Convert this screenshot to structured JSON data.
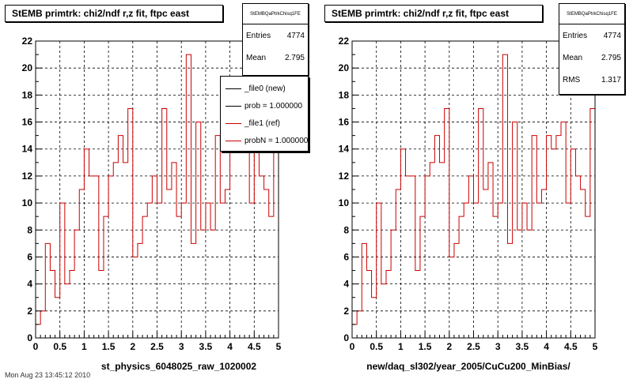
{
  "panels": [
    {
      "title": "StEMB primtrk: chi2/ndf r,z fit, ftpc east",
      "xtitle": "st_physics_6048025_raw_1020002",
      "stats": {
        "name": "StEMBQaPtrkChisq1FE",
        "rows": [
          {
            "label": "Entries",
            "value": "4774"
          },
          {
            "label": "Mean",
            "value": "2.795"
          }
        ]
      },
      "legend": [
        {
          "label": "_file0 (new)",
          "color": "#000000"
        },
        {
          "label": "prob = 1.000000",
          "color": "#000000"
        },
        {
          "label": "_file1 (ref)",
          "color": "#cc0000"
        },
        {
          "label": "probN = 1.000000",
          "color": "#cc0000"
        }
      ]
    },
    {
      "title": "StEMB primtrk: chi2/ndf r,z fit, ftpc east",
      "xtitle": "new/daq_sl302/year_2005/CuCu200_MinBias/",
      "stats": {
        "name": "StEMBQaPtrkChisq1FE",
        "rows": [
          {
            "label": "Entries",
            "value": "4774"
          },
          {
            "label": "Mean",
            "value": "2.795"
          },
          {
            "label": "RMS",
            "value": "1.317"
          }
        ]
      },
      "legend": []
    }
  ],
  "footer": "Mon Aug 23 13:45:12 2010",
  "colors": {
    "histogram": "#cc0000",
    "grid": "#000000"
  },
  "chart_data": [
    {
      "type": "histogram",
      "title": "StEMB primtrk: chi2/ndf r,z fit, ftpc east",
      "xlabel": "st_physics_6048025_raw_1020002",
      "xlim": [
        0,
        5
      ],
      "ylim": [
        0,
        22
      ],
      "xticks": [
        "0",
        "0.5",
        "1",
        "1.5",
        "2",
        "2.5",
        "3",
        "3.5",
        "4",
        "4.5",
        "5"
      ],
      "yticks": [
        "0",
        "2",
        "4",
        "6",
        "8",
        "10",
        "12",
        "14",
        "16",
        "18",
        "20",
        "22"
      ],
      "grid": true,
      "bin_width": 0.1,
      "values": [
        1,
        2,
        7,
        5,
        3,
        10,
        4,
        5,
        8,
        11,
        14,
        12,
        12,
        5,
        9,
        12,
        13,
        15,
        13,
        17,
        6,
        7,
        9,
        10,
        12,
        10,
        17,
        11,
        13,
        9,
        10,
        21,
        7,
        16,
        8,
        10,
        8,
        15,
        10,
        11,
        15,
        14,
        15,
        16,
        10,
        14,
        12,
        11,
        9,
        16
      ],
      "legend_position": "top-right"
    },
    {
      "type": "histogram",
      "title": "StEMB primtrk: chi2/ndf r,z fit, ftpc east",
      "xlabel": "new/daq_sl302/year_2005/CuCu200_MinBias/",
      "xlim": [
        0,
        5
      ],
      "ylim": [
        0,
        22
      ],
      "xticks": [
        "0",
        "0.5",
        "1",
        "1.5",
        "2",
        "2.5",
        "3",
        "3.5",
        "4",
        "4.5",
        "5"
      ],
      "yticks": [
        "0",
        "2",
        "4",
        "6",
        "8",
        "10",
        "12",
        "14",
        "16",
        "18",
        "20",
        "22"
      ],
      "grid": true,
      "bin_width": 0.1,
      "values": [
        1,
        2,
        7,
        5,
        3,
        10,
        4,
        5,
        8,
        11,
        14,
        12,
        12,
        5,
        9,
        12,
        13,
        15,
        13,
        17,
        6,
        7,
        9,
        10,
        12,
        10,
        17,
        11,
        13,
        9,
        10,
        21,
        7,
        16,
        8,
        10,
        8,
        15,
        10,
        11,
        15,
        14,
        15,
        16,
        10,
        14,
        12,
        11,
        9,
        17
      ]
    }
  ]
}
